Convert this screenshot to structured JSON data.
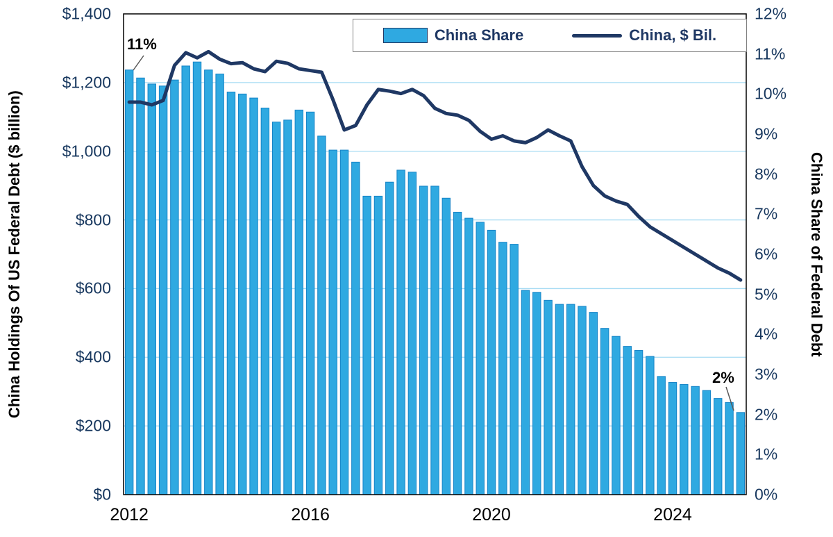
{
  "chart_data": {
    "type": "bar",
    "subtype": "combo_bar_line",
    "frequency": "quarterly",
    "x_axis": {
      "tick_labels": [
        "2012",
        "2016",
        "2020",
        "2024"
      ],
      "tick_positions": [
        0,
        16,
        32,
        48
      ]
    },
    "left_axis": {
      "title": "China Holdings Of US Federal Debt ($ billion)",
      "min": 0,
      "max": 1400,
      "step": 200,
      "tick_labels": [
        "$0",
        "$200",
        "$400",
        "$600",
        "$800",
        "$1,000",
        "$1,200",
        "$1,400"
      ]
    },
    "right_axis": {
      "title": "China Share of Federal Debt",
      "min": 0,
      "max": 12,
      "step": 1,
      "tick_labels": [
        "0%",
        "1%",
        "2%",
        "3%",
        "4%",
        "5%",
        "6%",
        "7%",
        "8%",
        "9%",
        "10%",
        "11%",
        "12%"
      ]
    },
    "legend": {
      "bar_label": "China Share",
      "line_label": "China, $ Bil."
    },
    "annotations": {
      "start_share": "11%",
      "end_share": "2%"
    },
    "colors": {
      "bar_fill": "#2FA9E1",
      "bar_stroke": "#1583C6",
      "line": "#1F3864",
      "grid": "#A6DBF3",
      "axis_text": "#17375E",
      "frame": "#000000",
      "connector": "#595959"
    },
    "series": [
      {
        "name": "China Share",
        "type": "bar",
        "axis": "right",
        "unit": "%",
        "values": [
          10.6,
          10.4,
          10.25,
          10.2,
          10.35,
          10.7,
          10.8,
          10.6,
          10.5,
          10.05,
          10.0,
          9.9,
          9.65,
          9.3,
          9.35,
          9.6,
          9.55,
          8.95,
          8.6,
          8.6,
          8.3,
          7.45,
          7.45,
          7.8,
          8.1,
          8.05,
          7.7,
          7.7,
          7.4,
          7.05,
          6.9,
          6.8,
          6.6,
          6.3,
          6.25,
          5.1,
          5.05,
          4.85,
          4.75,
          4.75,
          4.7,
          4.55,
          4.15,
          3.95,
          3.7,
          3.6,
          3.45,
          2.95,
          2.8,
          2.75,
          2.7,
          2.6,
          2.4,
          2.3,
          2.05
        ]
      },
      {
        "name": "China, $ Bil.",
        "type": "line",
        "axis": "left",
        "unit": "$ billion",
        "values": [
          1143,
          1143,
          1135,
          1148,
          1250,
          1287,
          1272,
          1290,
          1268,
          1255,
          1258,
          1240,
          1232,
          1262,
          1256,
          1240,
          1235,
          1230,
          1150,
          1062,
          1075,
          1135,
          1180,
          1175,
          1168,
          1180,
          1162,
          1125,
          1110,
          1105,
          1090,
          1058,
          1035,
          1045,
          1030,
          1025,
          1040,
          1062,
          1045,
          1030,
          955,
          900,
          870,
          855,
          845,
          810,
          780,
          760,
          740,
          720,
          700,
          680,
          660,
          645,
          625
        ]
      }
    ]
  }
}
